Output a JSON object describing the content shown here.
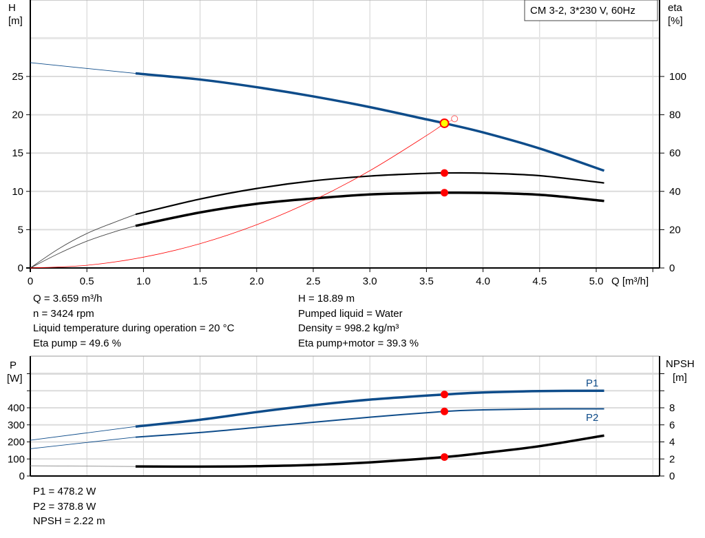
{
  "legend_box": "CM 3-2, 3*230 V, 60Hz",
  "info_top_left": [
    "Q = 3.659 m³/h",
    "n = 3424 rpm",
    "Liquid temperature during operation = 20 °C",
    "Eta pump = 49.6 %"
  ],
  "info_top_right": [
    "H = 18.89 m",
    "Pumped liquid = Water",
    "Density = 998.2 kg/m³",
    "Eta pump+motor = 39.3 %"
  ],
  "info_bottom": [
    "P1 = 478.2 W",
    "P2 = 378.8 W",
    "NPSH = 2.22 m"
  ],
  "colors": {
    "head": "#0e4c8a",
    "eta": "#000000",
    "system": "#ff0000",
    "duty_point": "#ff0000",
    "duty_fill": "#ffff00",
    "grid": "#d0d0d0"
  },
  "chart_data": [
    {
      "type": "line",
      "xlabel": "Q [m³/h]",
      "ylabel": "H [m]",
      "ylabel_parts": [
        "H",
        "[m]"
      ],
      "y2label_parts": [
        "eta",
        "[%]"
      ],
      "xlim": [
        0,
        5.5
      ],
      "ylim": [
        0,
        30
      ],
      "y2lim": [
        0,
        120
      ],
      "xticks": [
        "0",
        "0.5",
        "1.0",
        "1.5",
        "2.0",
        "2.5",
        "3.0",
        "3.5",
        "4.0",
        "4.5",
        "5.0"
      ],
      "yticks": [
        "0",
        "5",
        "10",
        "15",
        "20",
        "25"
      ],
      "y2ticks": [
        "0",
        "20",
        "40",
        "60",
        "80",
        "100"
      ],
      "grid": true,
      "series": [
        {
          "id": "head",
          "axis": "left",
          "thin": {
            "x": [
              0,
              0.93
            ],
            "y": [
              26.8,
              25.4
            ]
          },
          "x": [
            0.93,
            1.5,
            2.0,
            2.5,
            3.0,
            3.5,
            3.659,
            4.0,
            4.5,
            5.07
          ],
          "y": [
            25.4,
            24.6,
            23.6,
            22.4,
            21.0,
            19.4,
            18.89,
            17.7,
            15.6,
            12.7
          ]
        },
        {
          "id": "eta-pump",
          "axis": "right",
          "thin": {
            "x": [
              0,
              0.25,
              0.5,
              0.75,
              0.93
            ],
            "y": [
              0,
              10,
              18,
              24,
              28
            ]
          },
          "x": [
            0.93,
            1.5,
            2.0,
            2.5,
            3.0,
            3.5,
            3.659,
            4.0,
            4.5,
            5.07
          ],
          "y": [
            28,
            36,
            41.5,
            45.5,
            48,
            49.4,
            49.6,
            49.5,
            48.2,
            44.4
          ]
        },
        {
          "id": "eta-pump-motor",
          "axis": "right",
          "thin": {
            "x": [
              0,
              0.25,
              0.5,
              0.75,
              0.93
            ],
            "y": [
              0,
              7.5,
              14,
              19,
              22
            ]
          },
          "x": [
            0.93,
            1.5,
            2.0,
            2.5,
            3.0,
            3.5,
            3.659,
            4.0,
            4.5,
            5.07
          ],
          "y": [
            22,
            29,
            33.5,
            36.3,
            38.4,
            39.2,
            39.3,
            39.2,
            38.2,
            35
          ]
        },
        {
          "id": "system-curve",
          "axis": "left",
          "x": [
            0,
            0.5,
            1.0,
            1.5,
            2.0,
            2.5,
            3.0,
            3.5,
            3.659
          ],
          "y": [
            0,
            0.35,
            1.41,
            3.17,
            5.64,
            8.82,
            12.7,
            17.28,
            18.89
          ]
        }
      ],
      "duty_point": {
        "q": 3.659,
        "h": 18.89,
        "eta_pump": 49.6,
        "eta_total": 39.3
      }
    },
    {
      "type": "line",
      "ylabel_parts": [
        "P",
        "[W]"
      ],
      "y2label_parts": [
        "NPSH",
        "[m]"
      ],
      "xlim": [
        0,
        5.5
      ],
      "ylim": [
        0,
        700
      ],
      "y2lim": [
        0,
        14
      ],
      "yticks": [
        "0",
        "100",
        "200",
        "300",
        "400"
      ],
      "y2ticks": [
        "0",
        "2",
        "4",
        "6",
        "8"
      ],
      "grid": true,
      "series": [
        {
          "id": "P1",
          "name": "P1",
          "axis": "left",
          "thin": {
            "x": [
              0,
              0.93
            ],
            "y": [
              210,
              290
            ]
          },
          "x": [
            0.93,
            1.5,
            2.0,
            2.5,
            3.0,
            3.659,
            4.0,
            4.5,
            5.07
          ],
          "y": [
            290,
            330,
            375,
            415,
            448,
            478.2,
            490,
            498,
            500
          ]
        },
        {
          "id": "P2",
          "name": "P2",
          "axis": "left",
          "thin": {
            "x": [
              0,
              0.93
            ],
            "y": [
              160,
              228
            ]
          },
          "x": [
            0.93,
            1.5,
            2.0,
            2.5,
            3.0,
            3.659,
            4.0,
            4.5,
            5.07
          ],
          "y": [
            228,
            255,
            285,
            315,
            345,
            378.8,
            388,
            393,
            394
          ]
        },
        {
          "id": "NPSH",
          "axis": "right",
          "thin": {
            "x": [
              0,
              0.93
            ],
            "y": [
              1.2,
              1.12
            ]
          },
          "x": [
            0.93,
            1.5,
            2.0,
            2.5,
            3.0,
            3.659,
            4.0,
            4.5,
            5.07
          ],
          "y": [
            1.12,
            1.1,
            1.15,
            1.3,
            1.6,
            2.22,
            2.7,
            3.5,
            4.75
          ]
        }
      ],
      "duty_point": {
        "q": 3.659,
        "p1": 478.2,
        "p2": 378.8,
        "npsh": 2.22
      }
    }
  ]
}
